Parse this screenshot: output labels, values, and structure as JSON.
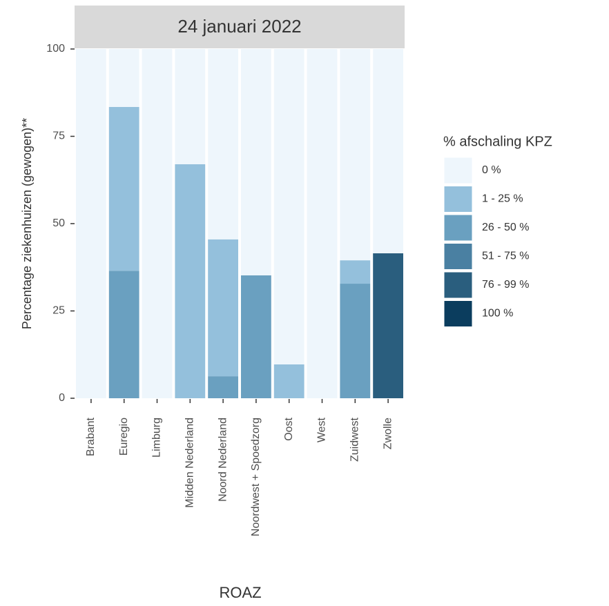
{
  "chart_data": {
    "type": "stacked_bar",
    "title": "24 januari 2022",
    "x_label": "ROAZ",
    "y_label": "Percentage ziekenhuizen (gewogen)**",
    "legend_title": "% afschaling KPZ",
    "categories": [
      "Brabant",
      "Euregio",
      "Limburg",
      "Midden Nederland",
      "Noord Nederland",
      "Noordwest + Spoedzorg",
      "Oost",
      "West",
      "Zuidwest",
      "Zwolle"
    ],
    "series": [
      {
        "name": "0 %",
        "color": "#eef6fc",
        "values": [
          100,
          16.6,
          100,
          33,
          54.5,
          64.8,
          90.3,
          100,
          60.5,
          58.5
        ]
      },
      {
        "name": "1 - 25 %",
        "color": "#94c0dc",
        "values": [
          0,
          46.9,
          0,
          67,
          39.2,
          0,
          9.7,
          0,
          6.7,
          0
        ]
      },
      {
        "name": "26 - 50 %",
        "color": "#6aa0c0",
        "values": [
          0,
          36.5,
          0,
          0,
          6.3,
          35.2,
          0,
          0,
          32.8,
          0
        ]
      },
      {
        "name": "51 - 75 %",
        "color": "#4a80a2",
        "values": [
          0,
          0,
          0,
          0,
          0,
          0,
          0,
          0,
          0,
          0
        ]
      },
      {
        "name": "76 - 99 %",
        "color": "#2a5e7e",
        "values": [
          0,
          0,
          0,
          0,
          0,
          0,
          0,
          0,
          0,
          41.5
        ]
      },
      {
        "name": "100 %",
        "color": "#0b3d5e",
        "values": [
          0,
          0,
          0,
          0,
          0,
          0,
          0,
          0,
          0,
          0
        ]
      }
    ],
    "ylim": [
      0,
      100
    ],
    "yticks": [
      0,
      25,
      50,
      75,
      100
    ]
  }
}
